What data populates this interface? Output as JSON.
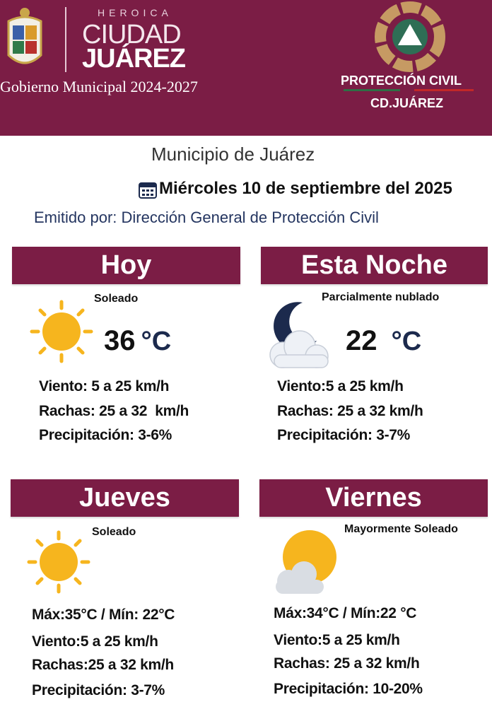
{
  "header": {
    "heroica": "HEROICA",
    "ciudad": "CIUDAD",
    "juarez": "JUÁREZ",
    "gobierno": "Gobierno Municipal 2024-2027",
    "pc_title": "PROTECCIÓN CIVIL",
    "pc_sub": "CD.JUÁREZ",
    "brand_color": "#7b1d45"
  },
  "intro": {
    "municipio": "Municipio de Juárez",
    "date": "Miércoles 10 de septiembre del 2025",
    "emitido": "Emitido por: Dirección General de Protección Civil"
  },
  "cards": [
    {
      "title": "Hoy",
      "condition": "Soleado",
      "icon": "sun-icon",
      "temp": "36",
      "unit": "°C",
      "lines": [
        {
          "label": "Viento:",
          "value": "5 a 25 km/h"
        },
        {
          "label": "Rachas:",
          "value": "25 a 32  km/h"
        },
        {
          "label": "Precipitación:",
          "value": "3-6%"
        }
      ]
    },
    {
      "title": "Esta Noche",
      "condition": "Parcialmente nublado",
      "icon": "moon-cloud-icon",
      "temp": "22",
      "unit": "°C",
      "lines": [
        {
          "label": "Viento:",
          "value": "5 a 25 km/h"
        },
        {
          "label": "Rachas:",
          "value": "25 a 32 km/h"
        },
        {
          "label": "Precipitación:",
          "value": "3-7%"
        }
      ]
    },
    {
      "title": "Jueves",
      "condition": "Soleado",
      "icon": "sun-icon",
      "maxmin": "Máx:35°C / Mín: 22°C",
      "lines": [
        {
          "label": "Viento:",
          "value": "5 a 25 km/h"
        },
        {
          "label": "Rachas:",
          "value": "25 a 32 km/h"
        },
        {
          "label": "Precipitación:",
          "value": "3-7%"
        }
      ]
    },
    {
      "title": "Viernes",
      "condition": "Mayormente Soleado",
      "icon": "sun-cloud-icon",
      "maxmin": "Máx:34°C / Mín:22 °C",
      "lines": [
        {
          "label": "Viento:",
          "value": "5 a 25 km/h"
        },
        {
          "label": "Rachas:",
          "value": "25 a 32 km/h"
        },
        {
          "label": "Precipitación:",
          "value": "10-20%"
        }
      ]
    }
  ]
}
